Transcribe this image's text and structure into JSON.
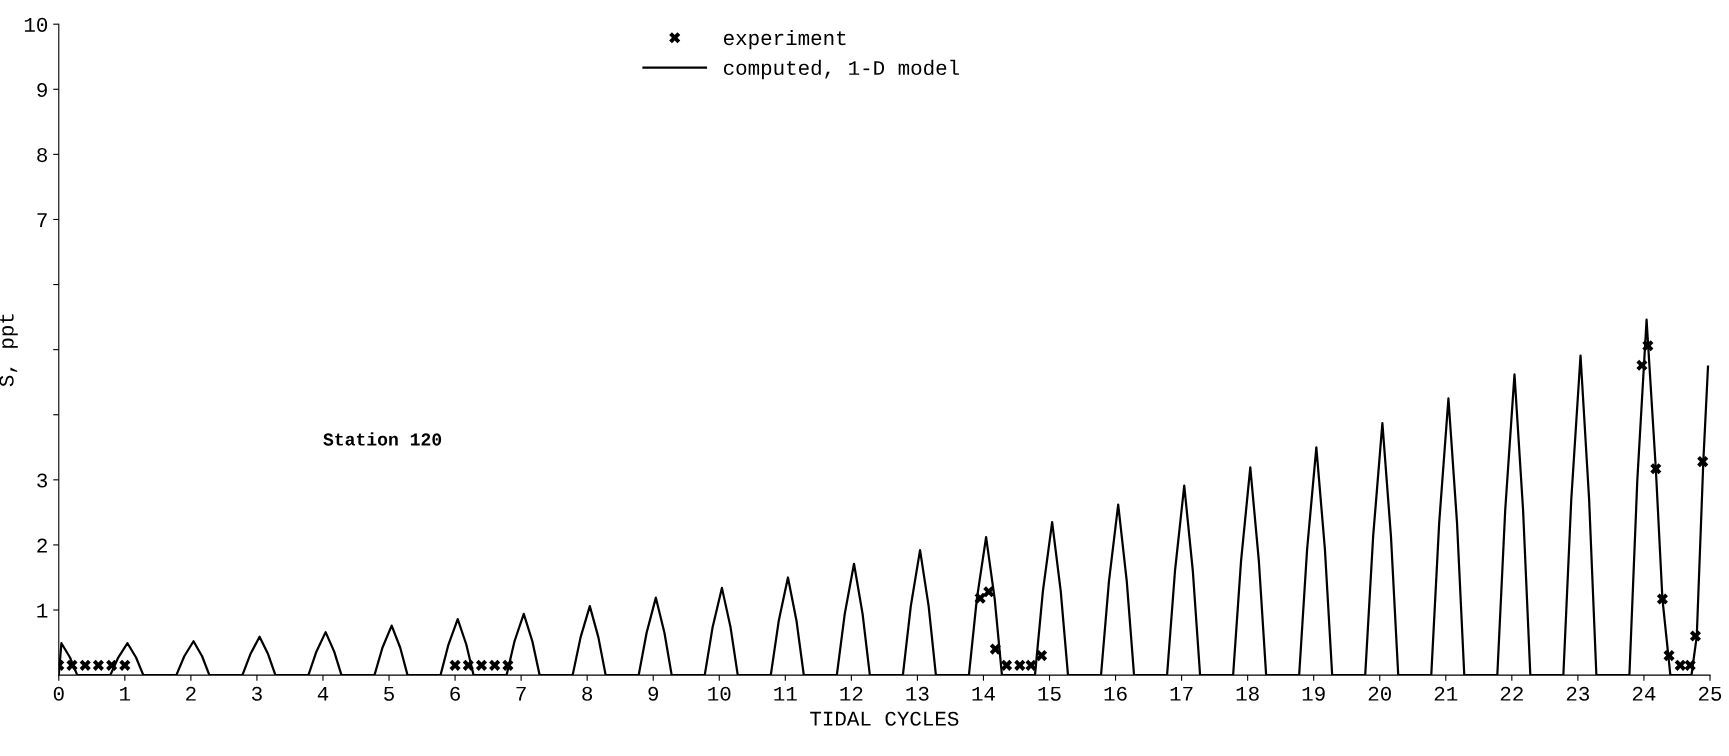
{
  "chart_data": {
    "type": "line",
    "xlabel": "TIDAL CYCLES",
    "ylabel": "S, ppt",
    "annotations": [
      "Station 120"
    ],
    "xlim": [
      0,
      25
    ],
    "xticks": [
      0,
      1,
      2,
      3,
      4,
      5,
      6,
      7,
      8,
      9,
      10,
      11,
      12,
      13,
      14,
      15,
      16,
      17,
      18,
      19,
      20,
      21,
      22,
      23,
      24,
      25
    ],
    "ylim": [
      0,
      10
    ],
    "yticks": [
      1,
      2,
      3,
      {
        "value": 4,
        "label": null
      },
      {
        "value": 5,
        "label": null
      },
      {
        "value": 6,
        "label": null
      },
      7,
      8,
      9,
      10
    ],
    "grid": false,
    "legend": "top",
    "series": [
      {
        "name": "experiment",
        "type": "scatter",
        "marker": "cross",
        "color": "#000000",
        "x": [
          0,
          0.2,
          0.4,
          0.6,
          0.8,
          1.0,
          6.0,
          6.2,
          6.4,
          6.6,
          6.8,
          13.95,
          14.08,
          14.18,
          14.35,
          14.55,
          14.72,
          14.88,
          23.97,
          24.06,
          24.18,
          24.28,
          24.38,
          24.55,
          24.7,
          24.78,
          24.89
        ],
        "values": [
          0.15,
          0.15,
          0.15,
          0.15,
          0.15,
          0.15,
          0.15,
          0.15,
          0.15,
          0.15,
          0.15,
          1.18,
          1.28,
          0.4,
          0.15,
          0.15,
          0.15,
          0.3,
          4.76,
          5.06,
          3.17,
          1.17,
          0.3,
          0.15,
          0.15,
          0.6,
          3.28
        ]
      },
      {
        "name": "computed, 1-D model",
        "marker": "none",
        "line_style": "solid",
        "color": "#000000",
        "x": [
          0,
          0.04,
          0.17,
          0.28,
          0.78,
          0.9,
          1.04,
          1.17,
          1.28,
          1.78,
          1.9,
          2.04,
          2.17,
          2.28,
          2.78,
          2.9,
          3.04,
          3.17,
          3.28,
          3.78,
          3.9,
          4.04,
          4.17,
          4.28,
          4.78,
          4.9,
          5.04,
          5.17,
          5.28,
          5.78,
          5.9,
          6.04,
          6.17,
          6.28,
          6.78,
          6.9,
          7.04,
          7.17,
          7.28,
          7.78,
          7.9,
          8.04,
          8.17,
          8.28,
          8.78,
          8.9,
          9.04,
          9.17,
          9.28,
          9.78,
          9.9,
          10.04,
          10.17,
          10.28,
          10.78,
          10.9,
          11.04,
          11.17,
          11.28,
          11.78,
          11.9,
          12.04,
          12.17,
          12.28,
          12.78,
          12.9,
          13.04,
          13.17,
          13.28,
          13.78,
          13.9,
          14.04,
          14.17,
          14.28,
          14.78,
          14.9,
          15.04,
          15.17,
          15.28,
          15.78,
          15.9,
          16.04,
          16.17,
          16.28,
          16.78,
          16.9,
          17.04,
          17.17,
          17.28,
          17.78,
          17.9,
          18.04,
          18.17,
          18.28,
          18.78,
          18.9,
          19.04,
          19.17,
          19.28,
          19.78,
          19.9,
          20.04,
          20.17,
          20.28,
          20.78,
          20.9,
          21.04,
          21.17,
          21.28,
          21.78,
          21.9,
          22.04,
          22.17,
          22.28,
          22.78,
          22.9,
          23.04,
          23.17,
          23.28,
          23.78,
          23.9,
          24.04,
          24.18,
          24.28,
          24.4,
          24.72,
          24.8,
          24.9,
          24.97
        ],
        "values": [
          0,
          0.49,
          0.27,
          0,
          0,
          0.27,
          0.49,
          0.27,
          0,
          0,
          0.29,
          0.52,
          0.29,
          0,
          0,
          0.32,
          0.59,
          0.32,
          0,
          0,
          0.36,
          0.66,
          0.36,
          0,
          0,
          0.42,
          0.76,
          0.42,
          0,
          0,
          0.47,
          0.86,
          0.47,
          0,
          0,
          0.52,
          0.94,
          0.52,
          0,
          0,
          0.58,
          1.06,
          0.58,
          0,
          0,
          0.65,
          1.19,
          0.65,
          0,
          0,
          0.74,
          1.34,
          0.74,
          0,
          0,
          0.83,
          1.5,
          0.83,
          0,
          0,
          0.94,
          1.71,
          0.94,
          0,
          0,
          1.06,
          1.92,
          1.06,
          0,
          0,
          1.17,
          2.12,
          1.17,
          0,
          0,
          1.29,
          2.35,
          1.29,
          0,
          0,
          1.44,
          2.62,
          1.44,
          0,
          0,
          1.6,
          2.91,
          1.6,
          0,
          0,
          1.75,
          3.19,
          1.75,
          0,
          0,
          1.93,
          3.5,
          1.93,
          0,
          0,
          2.13,
          3.87,
          2.13,
          0,
          0,
          2.34,
          4.25,
          2.34,
          0,
          0,
          2.54,
          4.62,
          2.54,
          0,
          0,
          2.7,
          4.91,
          2.7,
          0,
          0,
          3.0,
          5.46,
          3.17,
          1.17,
          0,
          0,
          0.6,
          3.3,
          4.74
        ]
      }
    ]
  }
}
